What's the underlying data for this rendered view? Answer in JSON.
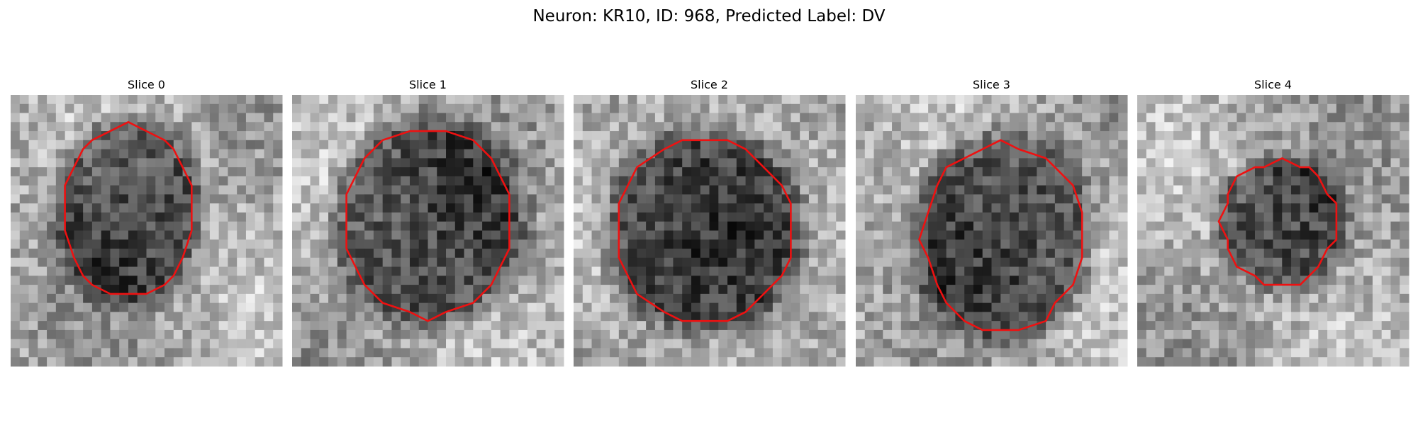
{
  "title": "Neuron: KR10, ID: 968, Predicted Label: DV",
  "panels": [
    {
      "label": "Slice 0"
    },
    {
      "label": "Slice 1"
    },
    {
      "label": "Slice 2"
    },
    {
      "label": "Slice 3"
    },
    {
      "label": "Slice 4"
    }
  ]
}
